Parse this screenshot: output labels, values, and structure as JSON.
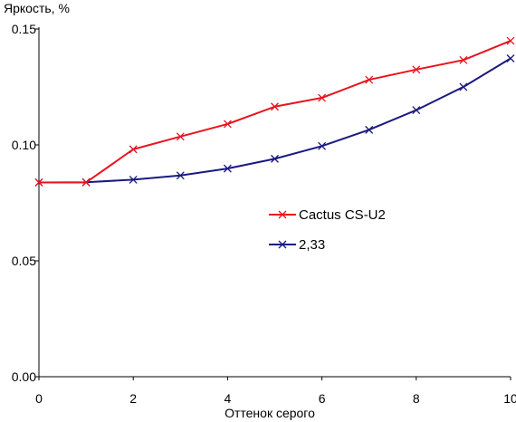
{
  "chart_data": {
    "type": "line",
    "title": "",
    "ylabel": "Яркость, %",
    "xlabel": "Оттенок серого",
    "xlim": [
      0,
      10
    ],
    "ylim": [
      0,
      0.15
    ],
    "x_ticks": [
      0,
      2,
      4,
      6,
      8,
      10
    ],
    "y_ticks": [
      0.0,
      0.05,
      0.1,
      0.15
    ],
    "y_tick_labels": [
      "0.00",
      "0.05",
      "0.10",
      "0.15"
    ],
    "grid": false,
    "legend_position": "center-right",
    "x": [
      0,
      1,
      2,
      3,
      4,
      5,
      6,
      7,
      8,
      9,
      10
    ],
    "series": [
      {
        "name": "Cactus CS-U2",
        "color": "#e8141e",
        "marker": "x",
        "values": [
          0.0838,
          0.0838,
          0.0981,
          0.1036,
          0.109,
          0.1165,
          0.1203,
          0.1281,
          0.1325,
          0.1366,
          0.1449
        ]
      },
      {
        "name": "2,33",
        "color": "#1a1a80",
        "marker": "x",
        "values": [
          0.0838,
          0.0839,
          0.085,
          0.0868,
          0.0898,
          0.094,
          0.0995,
          0.1065,
          0.115,
          0.125,
          0.1373
        ]
      }
    ]
  }
}
